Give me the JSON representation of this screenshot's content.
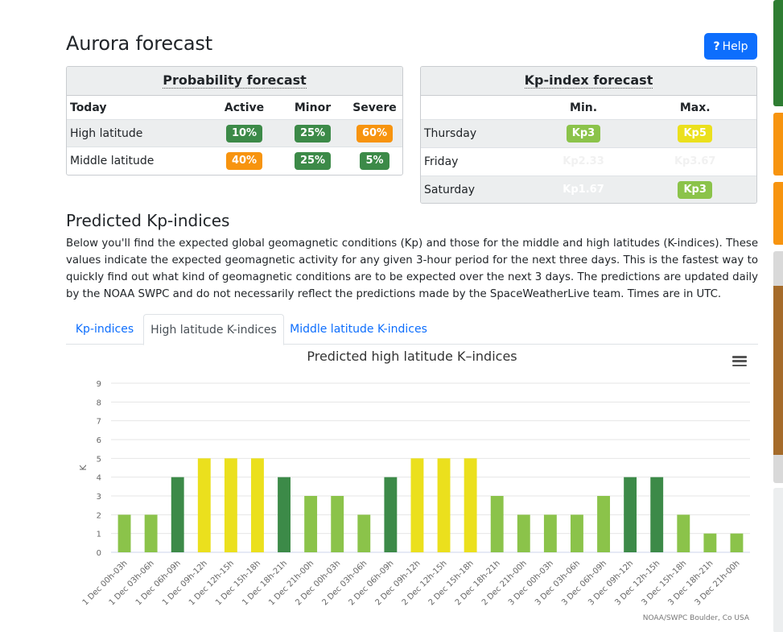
{
  "page": {
    "title": "Aurora forecast",
    "help_label": "Help"
  },
  "probability": {
    "title": "Probability forecast",
    "headers": [
      "Today",
      "Active",
      "Minor",
      "Severe"
    ],
    "rows": [
      {
        "label": "High latitude",
        "active": "10%",
        "minor": "25%",
        "severe": "60%",
        "colors": [
          "#3c8a48",
          "#3c8a48",
          "#f7940f"
        ]
      },
      {
        "label": "Middle latitude",
        "active": "40%",
        "minor": "25%",
        "severe": "5%",
        "colors": [
          "#f7940f",
          "#3c8a48",
          "#3c8a48"
        ]
      }
    ]
  },
  "kp_forecast": {
    "title": "Kp-index forecast",
    "headers": [
      "",
      "Min.",
      "Max."
    ],
    "rows": [
      {
        "day": "Thursday",
        "min": "Kp3",
        "max": "Kp5",
        "min_color": "#8bc34a",
        "max_color": "#ebe01d",
        "min_badge": true,
        "max_badge": true
      },
      {
        "day": "Friday",
        "min": "Kp2.33",
        "max": "Kp3.67",
        "min_badge": false,
        "max_badge": false
      },
      {
        "day": "Saturday",
        "min": "Kp1.67",
        "max": "Kp3",
        "max_color": "#8bc34a",
        "min_badge": false,
        "max_badge": true
      }
    ]
  },
  "predicted": {
    "title": "Predicted Kp-indices",
    "description": "Below you'll find the expected global geomagnetic conditions (Kp) and those for the middle and high latitudes (K-indices). These values indicate the expected geomagnetic activity for any given 3-hour period for the next three days. This is the fastest way to quickly find out what kind of geomagnetic conditions are to be expected over the next 3 days. The predictions are updated daily by the NOAA SWPC and do not necessarily reflect the predictions made by the SpaceWeatherLive team. Times are in UTC."
  },
  "tabs": [
    {
      "label": "Kp-indices",
      "active": false
    },
    {
      "label": "High latitude K-indices",
      "active": true
    },
    {
      "label": "Middle latitude K-indices",
      "active": false
    }
  ],
  "chart_data": {
    "type": "bar",
    "title": "Predicted high latitude K–indices",
    "ylabel": "K",
    "xlabel": "",
    "ylim": [
      0,
      9
    ],
    "yticks": [
      0,
      1,
      2,
      3,
      4,
      5,
      6,
      7,
      8,
      9
    ],
    "grid": true,
    "categories": [
      "1 Dec 00h-03h",
      "1 Dec 03h-06h",
      "1 Dec 06h-09h",
      "1 Dec 09h-12h",
      "1 Dec 12h-15h",
      "1 Dec 15h-18h",
      "1 Dec 18h-21h",
      "1 Dec 21h-00h",
      "2 Dec 00h-03h",
      "2 Dec 03h-06h",
      "2 Dec 06h-09h",
      "2 Dec 09h-12h",
      "2 Dec 12h-15h",
      "2 Dec 15h-18h",
      "2 Dec 18h-21h",
      "2 Dec 21h-00h",
      "3 Dec 00h-03h",
      "3 Dec 03h-06h",
      "3 Dec 06h-09h",
      "3 Dec 09h-12h",
      "3 Dec 12h-15h",
      "3 Dec 15h-18h",
      "3 Dec 18h-21h",
      "3 Dec 21h-00h"
    ],
    "values": [
      2,
      2,
      4,
      5,
      5,
      5,
      4,
      3,
      3,
      2,
      4,
      5,
      5,
      5,
      3,
      2,
      2,
      2,
      3,
      4,
      4,
      2,
      1,
      1
    ],
    "colors": {
      "low": "#8bc34a",
      "mid": "#3c8a48",
      "high": "#ebe01d"
    },
    "credits": "NOAA/SWPC Boulder, Co USA"
  }
}
